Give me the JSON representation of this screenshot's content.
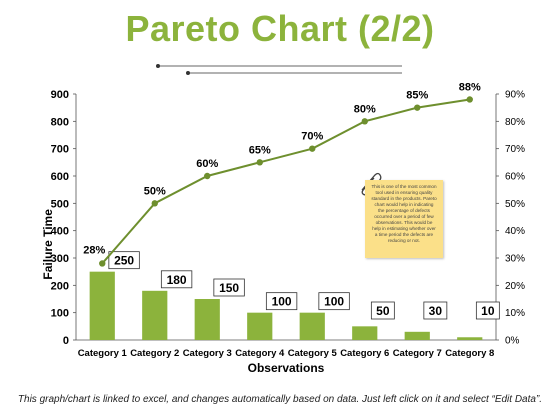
{
  "title": "Pareto Chart (2/2)",
  "footer": "This graph/chart is linked to excel, and changes automatically based on data. Just left click on it and select “Edit Data”.",
  "note": "This is one of the most common tool used in ensuring quality standard in the products. Pareto chart would help in indicating the percentage of defects occurred over a period of few observations. This would be help in estimating whether over a time period the defects are reducing or not.",
  "colors": {
    "accent": "#8cb33c",
    "bar": "#8cb33c",
    "line": "#6e8f2e",
    "note": "#fbe089"
  },
  "chart_data": {
    "type": "bar",
    "categories": [
      "Category 1",
      "Category 2",
      "Category 3",
      "Category 4",
      "Category 5",
      "Category 6",
      "Category 7",
      "Category 8"
    ],
    "series": [
      {
        "values": [
          250,
          180,
          150,
          100,
          100,
          50,
          30,
          10
        ]
      },
      {
        "values": [
          28,
          50,
          60,
          65,
          70,
          80,
          85,
          88
        ],
        "axis": "right"
      }
    ],
    "bar_labels": [
      "250",
      "180",
      "150",
      "100",
      "100",
      "50",
      "30",
      "10"
    ],
    "line_labels": [
      "28%",
      "50%",
      "60%",
      "65%",
      "70%",
      "80%",
      "85%",
      "88%"
    ],
    "xlabel": "Observations",
    "ylabel": "Failure Time",
    "ylim": [
      0,
      900
    ],
    "y_ticks": [
      "0",
      "100",
      "200",
      "300",
      "400",
      "500",
      "600",
      "700",
      "800",
      "900"
    ],
    "y2lim": [
      0,
      90
    ],
    "y2_ticks": [
      "0%",
      "10%",
      "20%",
      "30%",
      "40%",
      "50%",
      "60%",
      "70%",
      "80%",
      "90%"
    ],
    "grid": false,
    "legend": "none"
  }
}
